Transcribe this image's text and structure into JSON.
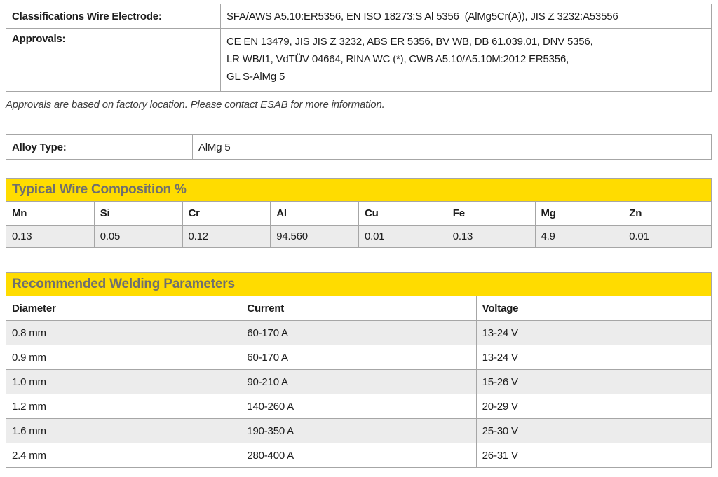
{
  "colors": {
    "accent_yellow": "#ffdc00",
    "band_title_text": "#6f6f6f",
    "alt_row_background": "#ececec",
    "table_border": "#a6a6a6"
  },
  "classifications": {
    "label": "Classifications Wire Electrode:",
    "value": "SFA/AWS A5.10:ER5356, EN ISO 18273:S Al 5356  (AlMg5Cr(A)), JIS Z 3232:A53556"
  },
  "approvals": {
    "label": "Approvals:",
    "value": "CE EN 13479, JIS JIS Z 3232, ABS ER 5356, BV WB, DB 61.039.01, DNV 5356,\nLR WB/I1, VdTÜV 04664, RINA WC (*), CWB A5.10/A5.10M:2012 ER5356,\nGL S-AlMg 5"
  },
  "note": "Approvals are based on factory location. Please contact ESAB for more information.",
  "alloy": {
    "label": "Alloy Type:",
    "value": "AlMg 5"
  },
  "composition": {
    "title": "Typical Wire Composition %",
    "headers": [
      "Mn",
      "Si",
      "Cr",
      "Al",
      "Cu",
      "Fe",
      "Mg",
      "Zn"
    ],
    "values": [
      "0.13",
      "0.05",
      "0.12",
      "94.560",
      "0.01",
      "0.13",
      "4.9",
      "0.01"
    ]
  },
  "welding": {
    "title": "Recommended Welding Parameters",
    "headers": [
      "Diameter",
      "Current",
      "Voltage"
    ],
    "rows": [
      [
        "0.8 mm",
        "60-170 A",
        "13-24 V"
      ],
      [
        "0.9 mm",
        "60-170 A",
        "13-24 V"
      ],
      [
        "1.0 mm",
        "90-210 A",
        "15-26 V"
      ],
      [
        "1.2 mm",
        "140-260 A",
        "20-29 V"
      ],
      [
        "1.6 mm",
        "190-350 A",
        "25-30 V"
      ],
      [
        "2.4 mm",
        "280-400 A",
        "26-31 V"
      ]
    ]
  }
}
